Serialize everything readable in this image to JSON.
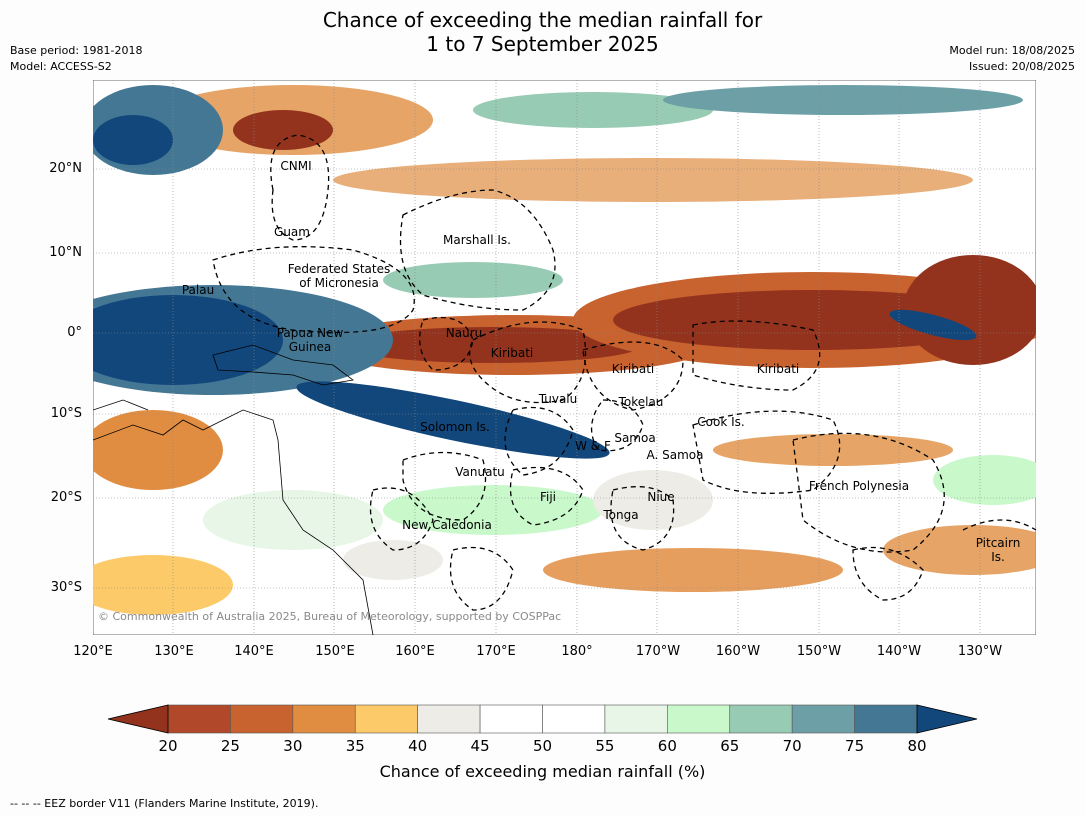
{
  "title": {
    "line1": "Chance of exceeding the median rainfall for",
    "line2": "1 to 7 September 2025"
  },
  "meta": {
    "base_period": "Base period: 1981-2018",
    "model": "Model: ACCESS-S2",
    "model_run": "Model run: 18/08/2025",
    "issued": "Issued: 20/08/2025"
  },
  "lon_labels": [
    "120°E",
    "130°E",
    "140°E",
    "150°E",
    "160°E",
    "170°E",
    "180°",
    "170°W",
    "160°W",
    "150°W",
    "140°W",
    "130°W"
  ],
  "lat_labels": [
    "20°N",
    "10°N",
    "0°",
    "10°S",
    "20°S",
    "30°S"
  ],
  "regions": [
    "CNMI",
    "Guam",
    "Marshall Is.",
    "Federated States\nof Micronesia",
    "Palau",
    "Papua New\nGuinea",
    "Nauru",
    "Kiribati",
    "Kiribati",
    "Kiribati",
    "Tuvalu",
    "Tokelau",
    "Cook Is.",
    "Solomon Is.",
    "Samoa",
    "W & F",
    "A. Samoa",
    "Vanuatu",
    "Fiji",
    "Niue",
    "Tonga",
    "French Polynesia",
    "New Caledonia",
    "Pitcairn\nIs."
  ],
  "copyright": "© Commonwealth of Australia 2025, Bureau of Meteorology, supported by COSPPac",
  "colorbar": {
    "ticks": [
      "20",
      "25",
      "30",
      "35",
      "40",
      "45",
      "50",
      "55",
      "60",
      "65",
      "70",
      "75",
      "80"
    ],
    "colors": [
      "#b1482a",
      "#c8622f",
      "#e08d41",
      "#fcca68",
      "#eeece7",
      "#ffffff",
      "#ffffff",
      "#e7f6e6",
      "#c9f9cb",
      "#98cbb4",
      "#6da0a6",
      "#447794"
    ],
    "low_extend_color": "#93331d",
    "high_extend_color": "#12477c",
    "label": "Chance of exceeding median rainfall (%)"
  },
  "footnote": "--  --  -- EEZ border V11 (Flanders Marine Institute, 2019)."
}
